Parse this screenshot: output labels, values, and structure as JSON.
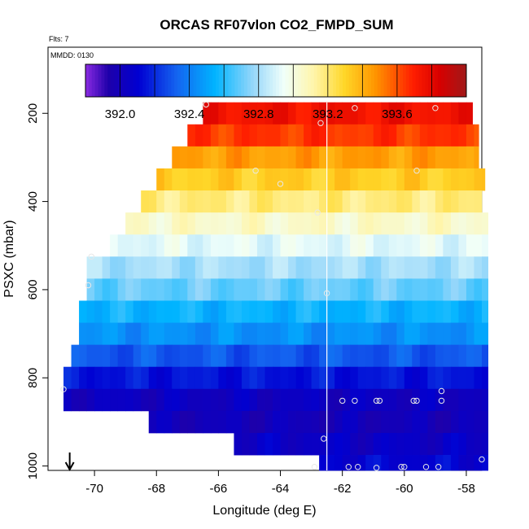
{
  "chart_data": {
    "type": "heatmap",
    "title": "ORCAS RF07vlon CO2_FMPD_SUM",
    "flights_label": "Flts: 7",
    "mmdd_label": "MMDD: 0130",
    "xlabel": "Longitude (deg E)",
    "ylabel": "PSXC (mbar)",
    "xlim": [
      -71.5,
      -57.5
    ],
    "ylim": [
      1010,
      50
    ],
    "x_ticks": [
      -70,
      -68,
      -66,
      -64,
      -62,
      -60,
      -58
    ],
    "y_ticks": [
      200,
      400,
      600,
      800,
      1000
    ],
    "colorbar": {
      "min": 391.8,
      "max": 394.0,
      "ticks": [
        392.0,
        392.4,
        392.8,
        393.2,
        393.6
      ],
      "tick_labels": [
        "392.0",
        "392.4",
        "392.8",
        "393.2",
        "393.6"
      ],
      "divisions": [
        391.8,
        392.0,
        392.2,
        392.4,
        392.6,
        392.8,
        393.0,
        393.2,
        393.4,
        393.6,
        393.8,
        394.0
      ]
    },
    "vertical_line_lon": -62.5,
    "arrow_lon": -70.8,
    "pressure_bins": [
      {
        "p_top": 175,
        "p_bot": 225,
        "lon_min": -66.5,
        "lon_max": -57.8,
        "value": 393.75
      },
      {
        "p_top": 225,
        "p_bot": 275,
        "lon_min": -67.0,
        "lon_max": -57.6,
        "value": 393.65
      },
      {
        "p_top": 275,
        "p_bot": 325,
        "lon_min": -67.5,
        "lon_max": -57.6,
        "value": 393.45
      },
      {
        "p_top": 325,
        "p_bot": 375,
        "lon_min": -68.0,
        "lon_max": -57.4,
        "value": 393.32
      },
      {
        "p_top": 375,
        "p_bot": 425,
        "lon_min": -68.5,
        "lon_max": -57.5,
        "value": 393.18
      },
      {
        "p_top": 425,
        "p_bot": 475,
        "lon_min": -69.0,
        "lon_max": -57.3,
        "value": 393.05
      },
      {
        "p_top": 475,
        "p_bot": 525,
        "lon_min": -69.5,
        "lon_max": -57.3,
        "value": 392.92
      },
      {
        "p_top": 525,
        "p_bot": 575,
        "lon_min": -70.25,
        "lon_max": -57.3,
        "value": 392.8
      },
      {
        "p_top": 575,
        "p_bot": 625,
        "lon_min": -70.25,
        "lon_max": -57.3,
        "value": 392.7
      },
      {
        "p_top": 625,
        "p_bot": 675,
        "lon_min": -70.5,
        "lon_max": -57.3,
        "value": 392.55
      },
      {
        "p_top": 675,
        "p_bot": 725,
        "lon_min": -70.5,
        "lon_max": -57.3,
        "value": 392.45
      },
      {
        "p_top": 725,
        "p_bot": 775,
        "lon_min": -70.75,
        "lon_max": -57.3,
        "value": 392.3
      },
      {
        "p_top": 775,
        "p_bot": 825,
        "lon_min": -71.0,
        "lon_max": -57.3,
        "value": 392.15
      },
      {
        "p_top": 825,
        "p_bot": 875,
        "lon_min": -71.0,
        "lon_max": -57.3,
        "value": 392.03
      },
      {
        "p_top": 875,
        "p_bot": 925,
        "lon_min": -68.25,
        "lon_max": -57.3,
        "value": 392.0
      },
      {
        "p_top": 925,
        "p_bot": 975,
        "lon_min": -65.5,
        "lon_max": -57.3,
        "value": 392.05
      },
      {
        "p_top": 975,
        "p_bot": 1010,
        "lon_min": -62.75,
        "lon_max": -57.3,
        "value": 392.1
      }
    ],
    "points": [
      {
        "lon": -66.4,
        "p": 180
      },
      {
        "lon": -62.7,
        "p": 222
      },
      {
        "lon": -61.6,
        "p": 188
      },
      {
        "lon": -59.0,
        "p": 188
      },
      {
        "lon": -64.8,
        "p": 330
      },
      {
        "lon": -64.0,
        "p": 360
      },
      {
        "lon": -59.6,
        "p": 330
      },
      {
        "lon": -62.8,
        "p": 425
      },
      {
        "lon": -70.1,
        "p": 525
      },
      {
        "lon": -70.2,
        "p": 590
      },
      {
        "lon": -62.5,
        "p": 608
      },
      {
        "lon": -71.0,
        "p": 826
      },
      {
        "lon": -58.8,
        "p": 830
      },
      {
        "lon": -62.0,
        "p": 852
      },
      {
        "lon": -61.6,
        "p": 852
      },
      {
        "lon": -60.9,
        "p": 852
      },
      {
        "lon": -60.8,
        "p": 852
      },
      {
        "lon": -59.7,
        "p": 852
      },
      {
        "lon": -59.6,
        "p": 852
      },
      {
        "lon": -58.8,
        "p": 852
      },
      {
        "lon": -62.6,
        "p": 938
      },
      {
        "lon": -57.5,
        "p": 985
      },
      {
        "lon": -62.9,
        "p": 1002
      },
      {
        "lon": -61.8,
        "p": 1002
      },
      {
        "lon": -61.5,
        "p": 1002
      },
      {
        "lon": -60.9,
        "p": 1004
      },
      {
        "lon": -60.1,
        "p": 1002
      },
      {
        "lon": -60.0,
        "p": 1002
      },
      {
        "lon": -59.3,
        "p": 1002
      },
      {
        "lon": -58.9,
        "p": 1002
      }
    ]
  }
}
